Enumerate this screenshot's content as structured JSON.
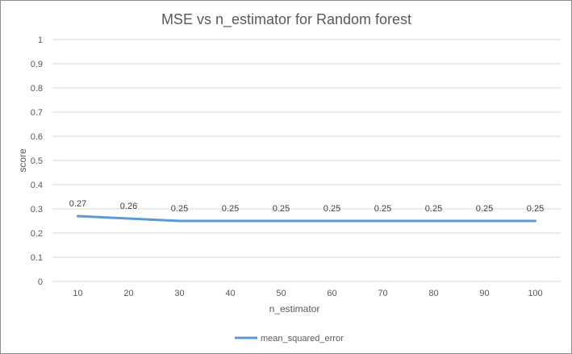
{
  "chart_data": {
    "type": "line",
    "title": "MSE vs n_estimator for Random forest",
    "xlabel": "n_estimator",
    "ylabel": "score",
    "categories": [
      "10",
      "20",
      "30",
      "40",
      "50",
      "60",
      "70",
      "80",
      "90",
      "100"
    ],
    "ylim": [
      0,
      1
    ],
    "yticks": [
      "0",
      "0.1",
      "0.2",
      "0.3",
      "0.4",
      "0.5",
      "0.6",
      "0.7",
      "0.8",
      "0.9",
      "1"
    ],
    "grid": true,
    "legend_position": "bottom",
    "series": [
      {
        "name": "mean_squared_error",
        "color": "#5b9bd5",
        "values": [
          0.27,
          0.26,
          0.25,
          0.25,
          0.25,
          0.25,
          0.25,
          0.25,
          0.25,
          0.25
        ],
        "data_labels": [
          "0.27",
          "0.26",
          "0.25",
          "0.25",
          "0.25",
          "0.25",
          "0.25",
          "0.25",
          "0.25",
          "0.25"
        ]
      }
    ]
  }
}
